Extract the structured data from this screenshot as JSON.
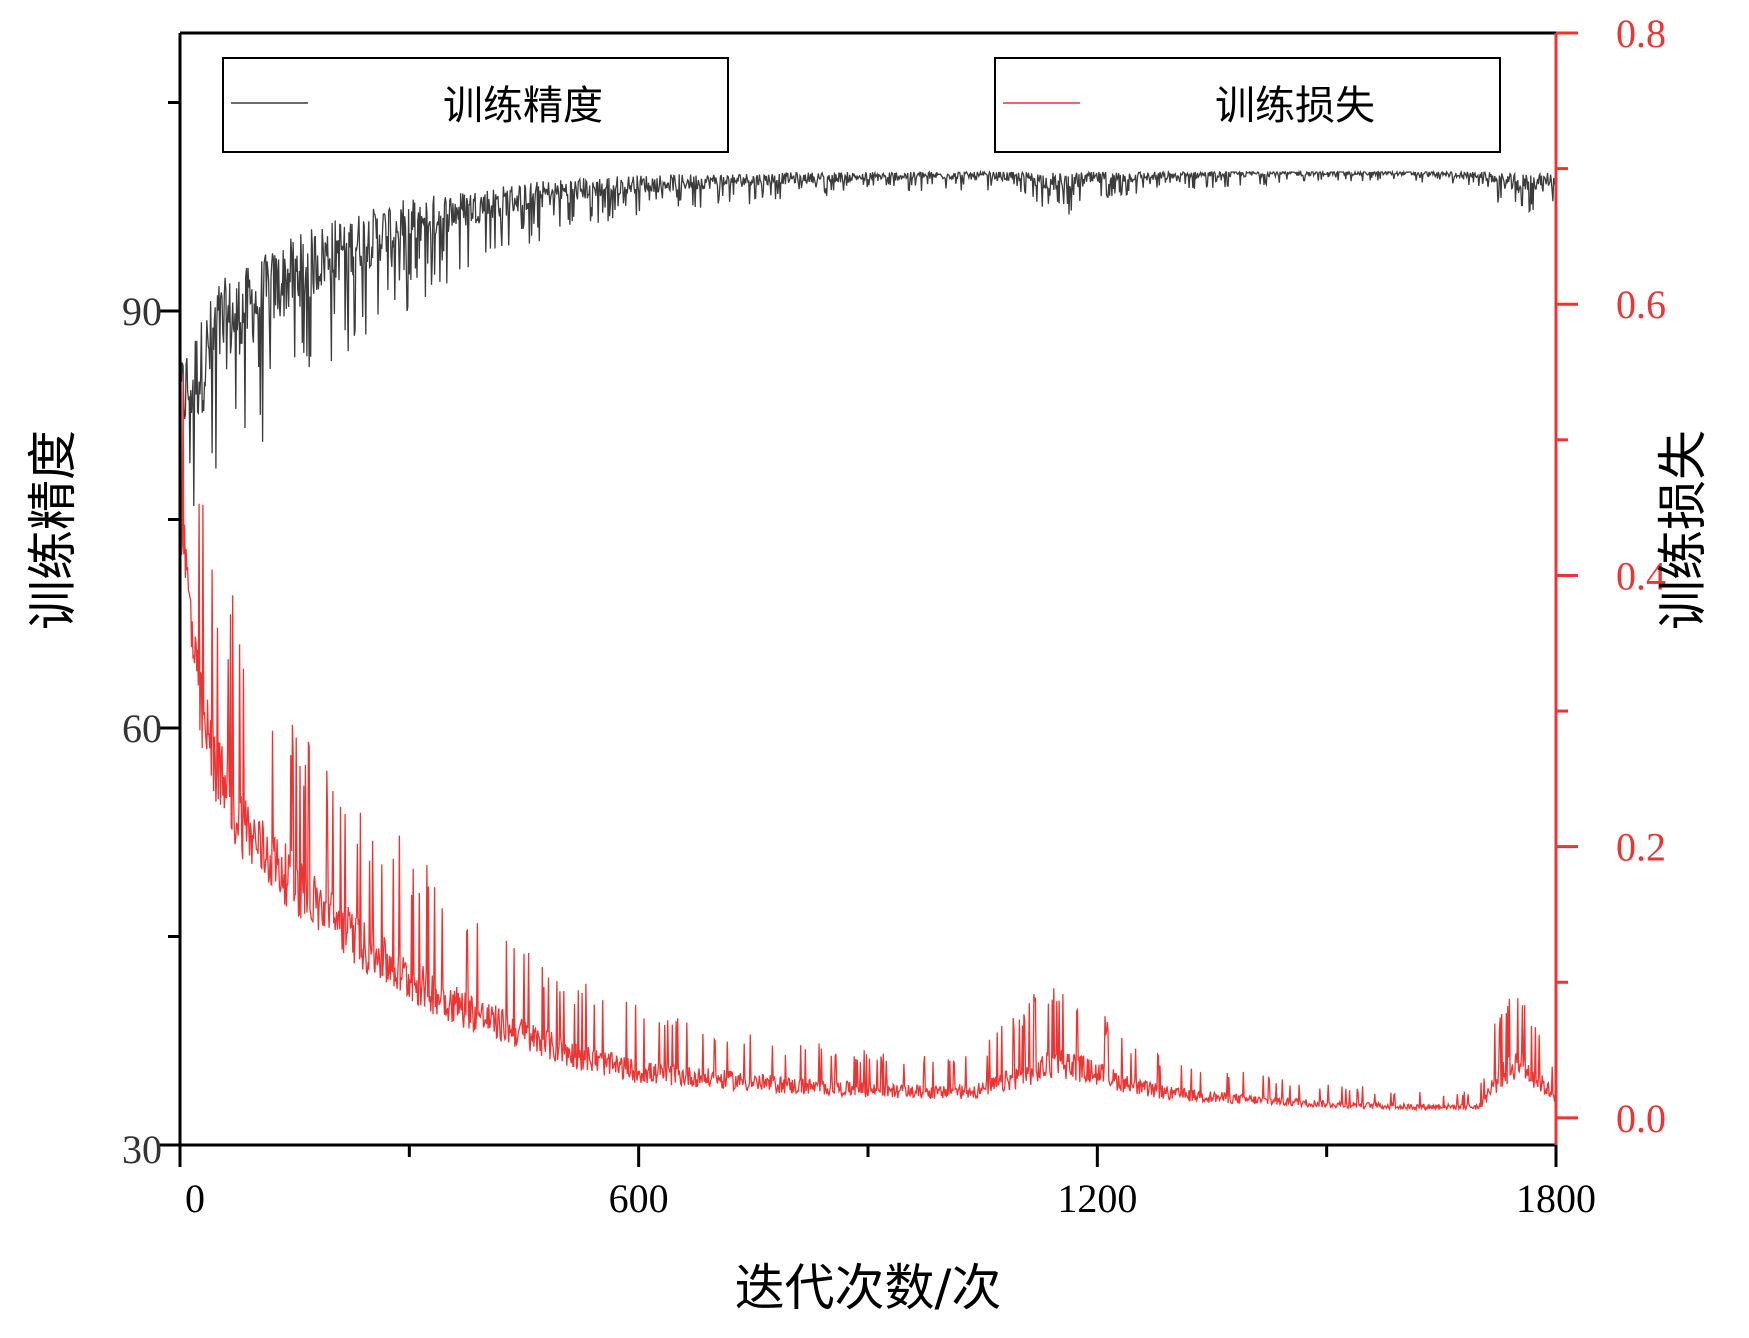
{
  "chart_data": {
    "type": "line",
    "title": "",
    "xlabel": "迭代次数/次",
    "ylabel_left": "训练精度",
    "ylabel_right": "训练损失",
    "xlim": [
      0,
      1800
    ],
    "ylim_left": [
      30,
      110
    ],
    "ylim_right": [
      -0.02,
      0.8
    ],
    "x_ticks": [
      "0",
      "600",
      "1200",
      "1800"
    ],
    "y_left_ticks": [
      "30",
      "60",
      "90"
    ],
    "y_right_ticks": [
      "0.0",
      "0.2",
      "0.4",
      "0.6",
      "0.8"
    ],
    "legend_placement": "top, split into two boxes",
    "grid": false,
    "colors": {
      "accuracy": "#3c3c3c",
      "loss": "#ee3333",
      "axis": "#000000",
      "right_axis": "#ee3333"
    },
    "series": [
      {
        "name": "训练精度",
        "axis": "left",
        "x": [
          0,
          25,
          50,
          75,
          100,
          150,
          200,
          250,
          300,
          350,
          400,
          450,
          500,
          550,
          600,
          700,
          800,
          900,
          1000,
          1100,
          1150,
          1200,
          1300,
          1400,
          1500,
          1600,
          1700,
          1750,
          1800
        ],
        "values": [
          84,
          86,
          89,
          90,
          91,
          93,
          94.5,
          95.5,
          96.5,
          97.2,
          97.8,
          98.3,
          98.7,
          99,
          99.2,
          99.4,
          99.6,
          99.7,
          99.8,
          99.7,
          99.3,
          99.6,
          99.8,
          99.9,
          99.95,
          99.95,
          99.8,
          99.2,
          99.6
        ],
        "noise": [
          5,
          6,
          6,
          5,
          5,
          4.5,
          4,
          3.5,
          3,
          2.5,
          2,
          1.8,
          1.5,
          1.3,
          1.1,
          0.9,
          0.7,
          0.6,
          0.5,
          0.6,
          1.2,
          0.8,
          0.5,
          0.4,
          0.3,
          0.3,
          0.4,
          1.2,
          0.8
        ]
      },
      {
        "name": "训练损失",
        "axis": "right",
        "x": [
          0,
          25,
          50,
          75,
          100,
          150,
          200,
          250,
          300,
          350,
          400,
          450,
          500,
          550,
          600,
          700,
          800,
          900,
          1000,
          1050,
          1100,
          1150,
          1200,
          1250,
          1300,
          1400,
          1500,
          1600,
          1700,
          1720,
          1750,
          1800
        ],
        "values": [
          0.45,
          0.3,
          0.25,
          0.22,
          0.2,
          0.17,
          0.145,
          0.12,
          0.1,
          0.085,
          0.072,
          0.06,
          0.048,
          0.04,
          0.033,
          0.028,
          0.023,
          0.02,
          0.018,
          0.02,
          0.03,
          0.04,
          0.032,
          0.022,
          0.017,
          0.013,
          0.01,
          0.008,
          0.008,
          0.025,
          0.04,
          0.015
        ],
        "noise": [
          0.06,
          0.07,
          0.065,
          0.06,
          0.055,
          0.05,
          0.045,
          0.042,
          0.038,
          0.034,
          0.03,
          0.027,
          0.024,
          0.021,
          0.019,
          0.016,
          0.014,
          0.012,
          0.011,
          0.014,
          0.02,
          0.026,
          0.02,
          0.014,
          0.011,
          0.008,
          0.006,
          0.005,
          0.005,
          0.02,
          0.025,
          0.01
        ]
      }
    ]
  }
}
